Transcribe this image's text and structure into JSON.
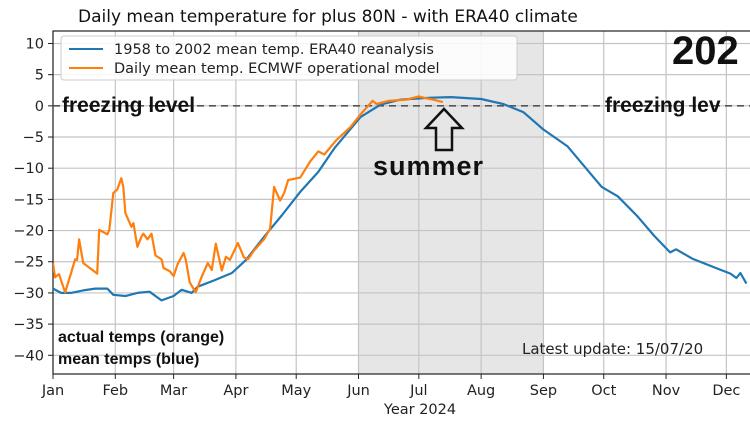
{
  "chart_data": {
    "type": "line",
    "title": "Daily mean temperature for plus 80N - with ERA40 climate",
    "year_label": "202",
    "xlabel": "Year 2024",
    "ylabel": "",
    "xlim": [
      "2024-01-01",
      "2024-12-31"
    ],
    "ylim": [
      -43,
      12
    ],
    "yticks": [
      -40,
      -35,
      -30,
      -25,
      -20,
      -15,
      -10,
      -5,
      0,
      5,
      10
    ],
    "xticks": [
      {
        "date": "2024-01-01",
        "label": "Jan"
      },
      {
        "date": "2024-02-01",
        "label": "Feb"
      },
      {
        "date": "2024-03-01",
        "label": "Mar"
      },
      {
        "date": "2024-04-01",
        "label": "Apr"
      },
      {
        "date": "2024-05-01",
        "label": "May"
      },
      {
        "date": "2024-06-01",
        "label": "Jun"
      },
      {
        "date": "2024-07-01",
        "label": "Jul"
      },
      {
        "date": "2024-08-01",
        "label": "Aug"
      },
      {
        "date": "2024-09-01",
        "label": "Sep"
      },
      {
        "date": "2024-10-01",
        "label": "Oct"
      },
      {
        "date": "2024-11-01",
        "label": "Nov"
      },
      {
        "date": "2024-12-01",
        "label": "Dec"
      }
    ],
    "grid": true,
    "legend_placement": "top-left",
    "summer_shading": {
      "start": "2024-06-01",
      "end": "2024-09-01",
      "color": "#e6e6e6"
    },
    "reference_line": {
      "y": 0,
      "style": "dashed",
      "color": "#555555"
    },
    "annotations": {
      "freezing_left": "freezing level",
      "freezing_right": "freezing lev",
      "summer": "summer",
      "note_orange": "actual temps (orange)",
      "note_blue": "mean temps (blue)",
      "latest_update": "Latest update: 15/07/20"
    },
    "series": [
      {
        "name": "1958 to 2002 mean temp. ERA40 reanalysis",
        "color": "#1f77b4",
        "points": [
          [
            "2024-01-01",
            -29.3
          ],
          [
            "2024-01-05",
            -30
          ],
          [
            "2024-01-10",
            -30
          ],
          [
            "2024-01-16",
            -29.6
          ],
          [
            "2024-01-22",
            -29.3
          ],
          [
            "2024-01-28",
            -29.3
          ],
          [
            "2024-01-31",
            -30.3
          ],
          [
            "2024-02-06",
            -30.5
          ],
          [
            "2024-02-12",
            -30
          ],
          [
            "2024-02-18",
            -29.8
          ],
          [
            "2024-02-24",
            -31.2
          ],
          [
            "2024-03-01",
            -30.5
          ],
          [
            "2024-03-05",
            -29.5
          ],
          [
            "2024-03-10",
            -30
          ],
          [
            "2024-03-13",
            -29
          ],
          [
            "2024-03-21",
            -28
          ],
          [
            "2024-03-30",
            -26.8
          ],
          [
            "2024-04-06",
            -24.7
          ],
          [
            "2024-04-16",
            -20.6
          ],
          [
            "2024-04-24",
            -17.5
          ],
          [
            "2024-05-03",
            -13.8
          ],
          [
            "2024-05-12",
            -10.6
          ],
          [
            "2024-05-20",
            -6.8
          ],
          [
            "2024-06-02",
            -1.8
          ],
          [
            "2024-06-12",
            0.2
          ],
          [
            "2024-06-22",
            1
          ],
          [
            "2024-07-07",
            1.3
          ],
          [
            "2024-07-17",
            1.4
          ],
          [
            "2024-08-01",
            1.1
          ],
          [
            "2024-08-12",
            0.3
          ],
          [
            "2024-08-22",
            -1
          ],
          [
            "2024-09-01",
            -3.8
          ],
          [
            "2024-09-13",
            -6.5
          ],
          [
            "2024-09-30",
            -13
          ],
          [
            "2024-10-08",
            -14.5
          ],
          [
            "2024-10-18",
            -17.8
          ],
          [
            "2024-10-26",
            -20.8
          ],
          [
            "2024-11-03",
            -23.5
          ],
          [
            "2024-11-06",
            -23
          ],
          [
            "2024-11-14",
            -24.5
          ],
          [
            "2024-11-25",
            -25.9
          ],
          [
            "2024-12-03",
            -26.9
          ],
          [
            "2024-12-06",
            -27.6
          ],
          [
            "2024-12-08",
            -26.8
          ],
          [
            "2024-12-11",
            -28.5
          ]
        ]
      },
      {
        "name": "Daily mean temp. ECMWF operational model",
        "color": "#ff7f0e",
        "points": [
          [
            "2024-01-01",
            -25.2
          ],
          [
            "2024-01-02",
            -27.5
          ],
          [
            "2024-01-03",
            -27.2
          ],
          [
            "2024-01-04",
            -27
          ],
          [
            "2024-01-07",
            -29.9
          ],
          [
            "2024-01-10",
            -26.8
          ],
          [
            "2024-01-12",
            -24.6
          ],
          [
            "2024-01-13",
            -24.7
          ],
          [
            "2024-01-14",
            -21.4
          ],
          [
            "2024-01-16",
            -25.2
          ],
          [
            "2024-01-23",
            -26.9
          ],
          [
            "2024-01-24",
            -19.9
          ],
          [
            "2024-01-28",
            -20.6
          ],
          [
            "2024-01-29",
            -19.9
          ],
          [
            "2024-01-31",
            -14
          ],
          [
            "2024-02-02",
            -13.4
          ],
          [
            "2024-02-04",
            -11.6
          ],
          [
            "2024-02-05",
            -13
          ],
          [
            "2024-02-06",
            -17.2
          ],
          [
            "2024-02-09",
            -19.4
          ],
          [
            "2024-02-10",
            -18.8
          ],
          [
            "2024-02-12",
            -22.6
          ],
          [
            "2024-02-14",
            -21
          ],
          [
            "2024-02-15",
            -20.5
          ],
          [
            "2024-02-17",
            -21.4
          ],
          [
            "2024-02-19",
            -20.5
          ],
          [
            "2024-02-21",
            -24
          ],
          [
            "2024-02-24",
            -24.6
          ],
          [
            "2024-02-25",
            -26
          ],
          [
            "2024-02-28",
            -26.5
          ],
          [
            "2024-03-01",
            -27.3
          ],
          [
            "2024-03-03",
            -25.4
          ],
          [
            "2024-03-06",
            -23.6
          ],
          [
            "2024-03-07",
            -24.6
          ],
          [
            "2024-03-09",
            -28.3
          ],
          [
            "2024-03-12",
            -29.9
          ],
          [
            "2024-03-15",
            -27.4
          ],
          [
            "2024-03-18",
            -25.2
          ],
          [
            "2024-03-20",
            -26.3
          ],
          [
            "2024-03-22",
            -22.1
          ],
          [
            "2024-03-25",
            -26.4
          ],
          [
            "2024-03-27",
            -24.2
          ],
          [
            "2024-03-29",
            -24.7
          ],
          [
            "2024-04-02",
            -22
          ],
          [
            "2024-04-05",
            -24.3
          ],
          [
            "2024-04-07",
            -24.6
          ],
          [
            "2024-04-10",
            -23.2
          ],
          [
            "2024-04-15",
            -21.4
          ],
          [
            "2024-04-18",
            -19.7
          ],
          [
            "2024-04-20",
            -13
          ],
          [
            "2024-04-23",
            -15.2
          ],
          [
            "2024-04-25",
            -14
          ],
          [
            "2024-04-27",
            -11.9
          ],
          [
            "2024-05-03",
            -11.5
          ],
          [
            "2024-05-08",
            -8.9
          ],
          [
            "2024-05-12",
            -7.3
          ],
          [
            "2024-05-15",
            -7.8
          ],
          [
            "2024-05-21",
            -5.5
          ],
          [
            "2024-05-28",
            -3.4
          ],
          [
            "2024-06-03",
            -1
          ],
          [
            "2024-06-08",
            0.8
          ],
          [
            "2024-06-10",
            0.3
          ],
          [
            "2024-06-16",
            0.8
          ],
          [
            "2024-06-25",
            1
          ],
          [
            "2024-07-01",
            1.5
          ],
          [
            "2024-07-05",
            1.2
          ],
          [
            "2024-07-08",
            1
          ],
          [
            "2024-07-13",
            0.6
          ]
        ]
      }
    ]
  }
}
